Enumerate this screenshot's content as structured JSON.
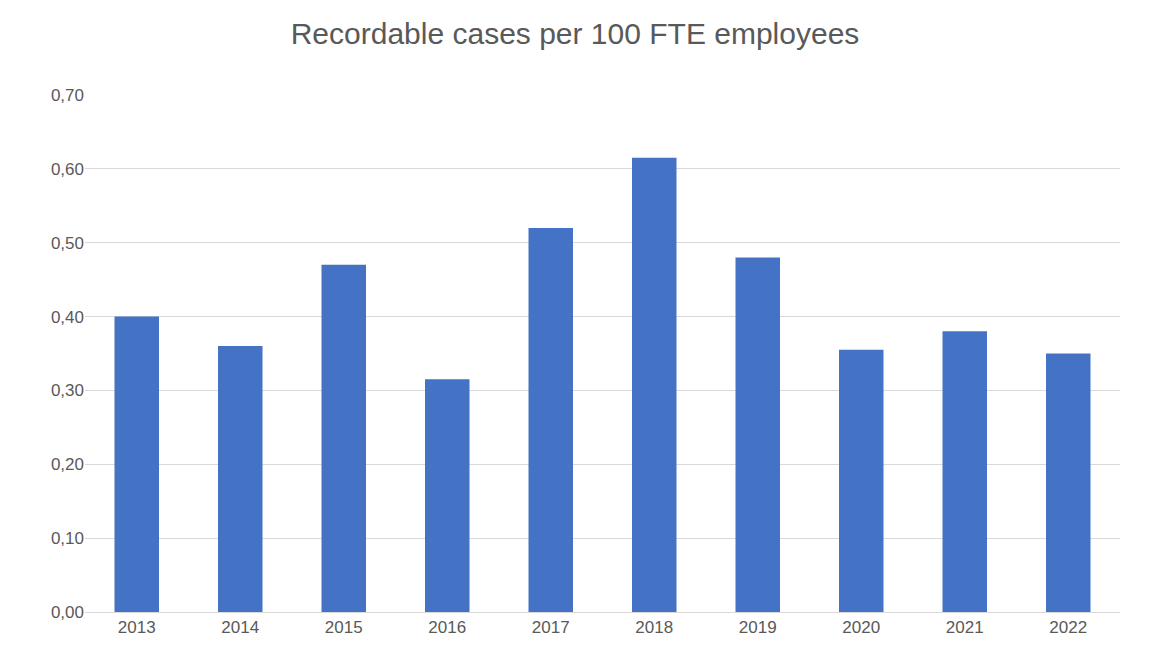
{
  "chart_data": {
    "type": "bar",
    "title": "Recordable cases per 100 FTE employees",
    "categories": [
      "2013",
      "2014",
      "2015",
      "2016",
      "2017",
      "2018",
      "2019",
      "2020",
      "2021",
      "2022"
    ],
    "values": [
      0.4,
      0.36,
      0.47,
      0.315,
      0.52,
      0.615,
      0.48,
      0.355,
      0.38,
      0.35
    ],
    "color": "#4472c4",
    "ylim": [
      0,
      0.7
    ],
    "yticks": [
      {
        "value": 0,
        "label": "0,00"
      },
      {
        "value": 0.1,
        "label": "0,10"
      },
      {
        "value": 0.2,
        "label": "0,20"
      },
      {
        "value": 0.3,
        "label": "0,30"
      },
      {
        "value": 0.4,
        "label": "0,40"
      },
      {
        "value": 0.5,
        "label": "0,50"
      },
      {
        "value": 0.6,
        "label": "0,60"
      },
      {
        "value": 0.7,
        "label": "0,70"
      }
    ],
    "grid": true
  }
}
